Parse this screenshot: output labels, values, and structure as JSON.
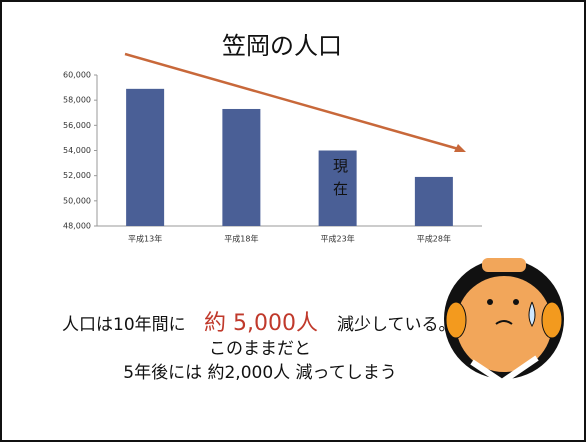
{
  "chart_data": {
    "type": "bar",
    "title": "笠岡の人口",
    "categories": [
      "平成13年",
      "平成18年",
      "平成23年",
      "平成28年"
    ],
    "values": [
      58900,
      57300,
      54000,
      51900
    ],
    "color": "#4a5f96",
    "ylim": [
      48000,
      60000
    ],
    "yticks": [
      {
        "value": 48000,
        "label": "48,000"
      },
      {
        "value": 50000,
        "label": "50,000"
      },
      {
        "value": 52000,
        "label": "52,000"
      },
      {
        "value": 54000,
        "label": "54,000"
      },
      {
        "value": 56000,
        "label": "56,000"
      },
      {
        "value": 58000,
        "label": "58,000"
      },
      {
        "value": 60000,
        "label": "60,000"
      }
    ],
    "annotation": "現在"
  },
  "message": [
    "人口は10年間に",
    "約 5,000人",
    "減少している。",
    "このままだと",
    "5年後には 約2,000人 減ってしまう"
  ]
}
